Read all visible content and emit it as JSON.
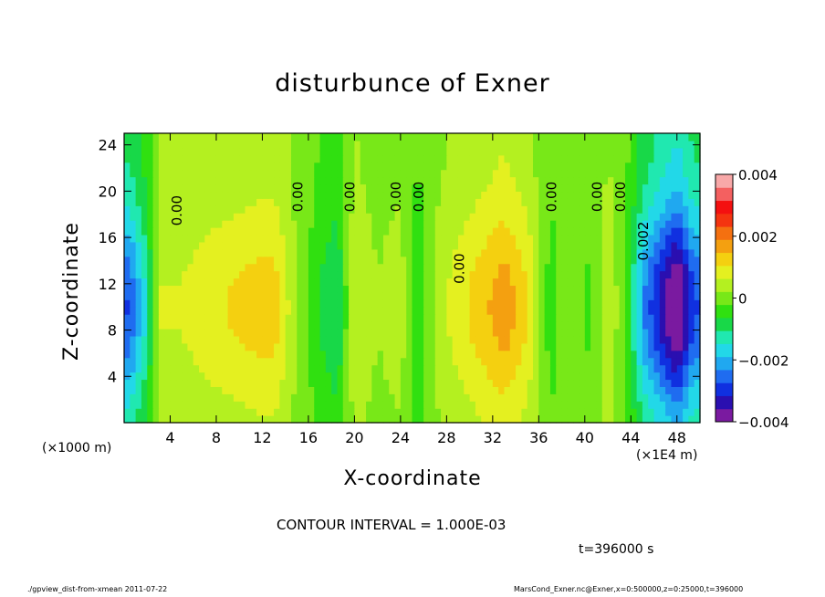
{
  "chart_data": {
    "type": "heatmap",
    "title": "disturbunce of Exner",
    "xlabel": "X-coordinate",
    "ylabel": "Z-coordinate",
    "x_unit_left": "(×1000 m)",
    "x_unit_right": "(×1E4 m)",
    "x_ticks": [
      "4",
      "8",
      "12",
      "16",
      "20",
      "24",
      "28",
      "32",
      "36",
      "40",
      "44",
      "48"
    ],
    "y_ticks": [
      "4",
      "8",
      "12",
      "16",
      "20",
      "24"
    ],
    "xlim": [
      0,
      50
    ],
    "ylim": [
      0,
      25
    ],
    "colorbar": {
      "range": [
        -0.004,
        0.004
      ],
      "tick_labels": [
        "0.004",
        "0.002",
        "0",
        "−0.002",
        "−0.004"
      ],
      "tick_values": [
        0.004,
        0.002,
        0,
        -0.002,
        -0.004
      ],
      "colors": [
        "#7a1aa0",
        "#2a0fb0",
        "#1030e0",
        "#1f6cf0",
        "#20a8f0",
        "#22d8e8",
        "#20e8b0",
        "#18d848",
        "#30e010",
        "#78e818",
        "#b4f020",
        "#e4f020",
        "#f4d010",
        "#f4a010",
        "#f47010",
        "#f43410",
        "#f41010",
        "#f46060",
        "#f8a8a8"
      ]
    },
    "contour_labels": [
      "0.00",
      "0.00",
      "0.00",
      "0.00",
      "0.00",
      "0.00",
      "0.00",
      "0.00",
      "0.00",
      "0.002"
    ],
    "contour_interval_text": "CONTOUR INTERVAL = 1.000E-03",
    "time_text": "t=396000 s",
    "approx_column_profile": {
      "x": [
        0.5,
        2,
        3,
        5,
        8,
        11,
        13,
        15,
        17,
        18.5,
        20,
        22,
        24,
        25.5,
        27,
        29,
        31,
        33,
        35,
        37,
        39,
        40.5,
        42,
        43.5,
        45,
        46.5,
        48,
        49.5
      ],
      "value_mid_height": [
        -0.0025,
        -0.0012,
        0.0006,
        0.0006,
        0.0009,
        0.0011,
        0.0012,
        0.0002,
        -0.0006,
        -0.001,
        0.0006,
        0.0002,
        0.0004,
        -0.0006,
        0.0003,
        0.0008,
        0.0012,
        0.0016,
        0.001,
        -0.0004,
        0.0002,
        -0.0003,
        0.0006,
        -0.0002,
        -0.002,
        -0.003,
        -0.004,
        -0.0025
      ]
    }
  },
  "footer": {
    "left": "./gpview_dist-from-xmean  2011-07-22",
    "right": "MarsCond_Exner.nc@Exner,x=0:500000,z=0:25000,t=396000"
  }
}
